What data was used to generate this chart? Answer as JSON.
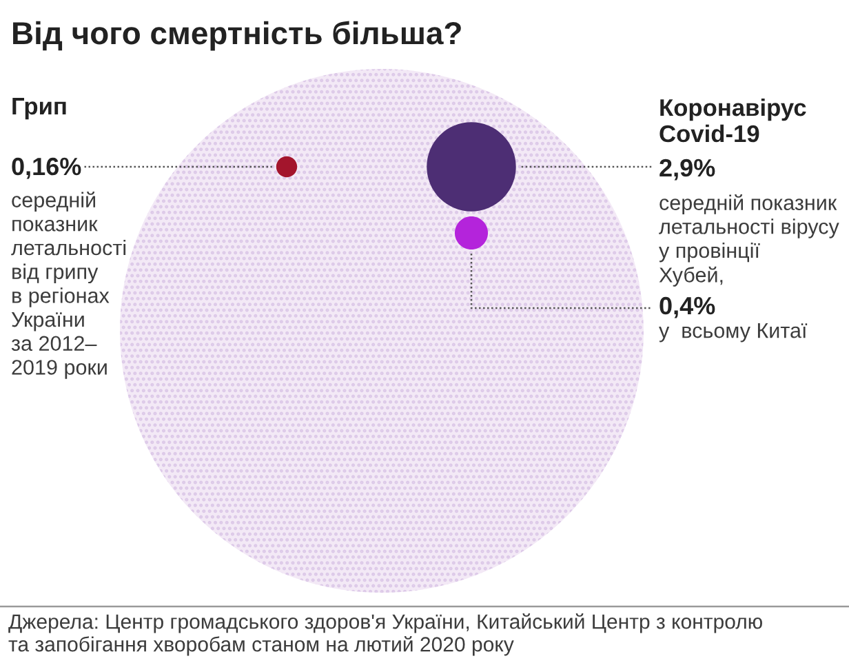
{
  "chart_data": {
    "type": "other",
    "title": "Від чого смертність більша?",
    "categories": [
      "Грип",
      "Коронавірус\nCovid-19",
      null
    ],
    "values": [
      0.16,
      2.9,
      0.4
    ],
    "colors": [
      "#a3152c",
      "#4d2e74",
      "#b424db"
    ],
    "value_labels": [
      "0,16%",
      "2,9%",
      "0,4%"
    ],
    "annotations": [
      "середній\nпоказник\nлетальності\nвід грипу\nв регіонах\nУкраїни\nза 2012–\n2019 роки",
      "середній показник\nлетальності вірусу\nу провінції\nХубей,",
      "у  всьому Китаї",
      "Джерела: Центр громадського здоров'я України, Китайський Центр з контролю\nта запобігання хворобам станом на лютий 2020 року"
    ]
  }
}
